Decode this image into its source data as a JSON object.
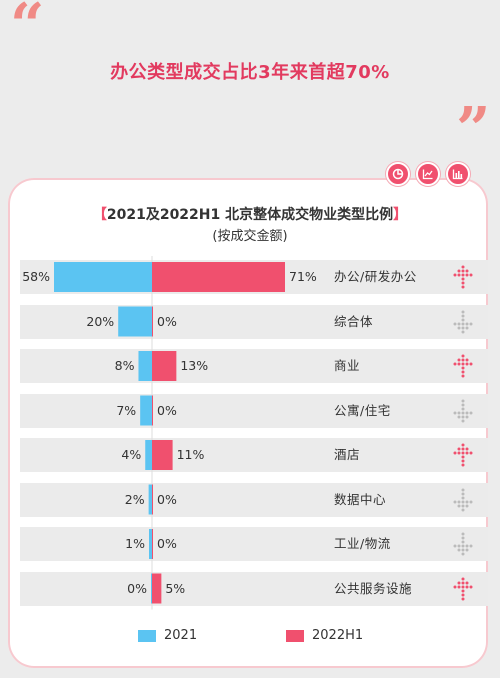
{
  "headline": "办公类型成交占比3年来首超70%",
  "chart_data": {
    "type": "bar",
    "title": "2021及2022H1 北京整体成交物业类型比例",
    "subtitle": "(按成交金额)",
    "categories": [
      "办公/研发办公",
      "综合体",
      "商业",
      "公寓/住宅",
      "酒店",
      "数据中心",
      "工业/物流",
      "公共服务设施"
    ],
    "series": [
      {
        "name": "2021",
        "color": "#5bc4f2",
        "values": [
          58,
          20,
          8,
          7,
          4,
          2,
          1,
          0
        ]
      },
      {
        "name": "2022H1",
        "color": "#f0506e",
        "values": [
          71,
          0,
          13,
          0,
          11,
          0,
          0,
          5
        ]
      }
    ],
    "value_labels_left": [
      "58%",
      "20%",
      "8%",
      "7%",
      "4%",
      "2%",
      "1%",
      "0%"
    ],
    "value_labels_right": [
      "71%",
      "0%",
      "13%",
      "0%",
      "11%",
      "0%",
      "0%",
      "5%"
    ],
    "trend": [
      "up",
      "down",
      "up",
      "down",
      "up",
      "down",
      "down",
      "up"
    ],
    "trend_colors": {
      "up": "#f0506e",
      "down": "#bbbbbb"
    },
    "legend_position": "bottom"
  }
}
